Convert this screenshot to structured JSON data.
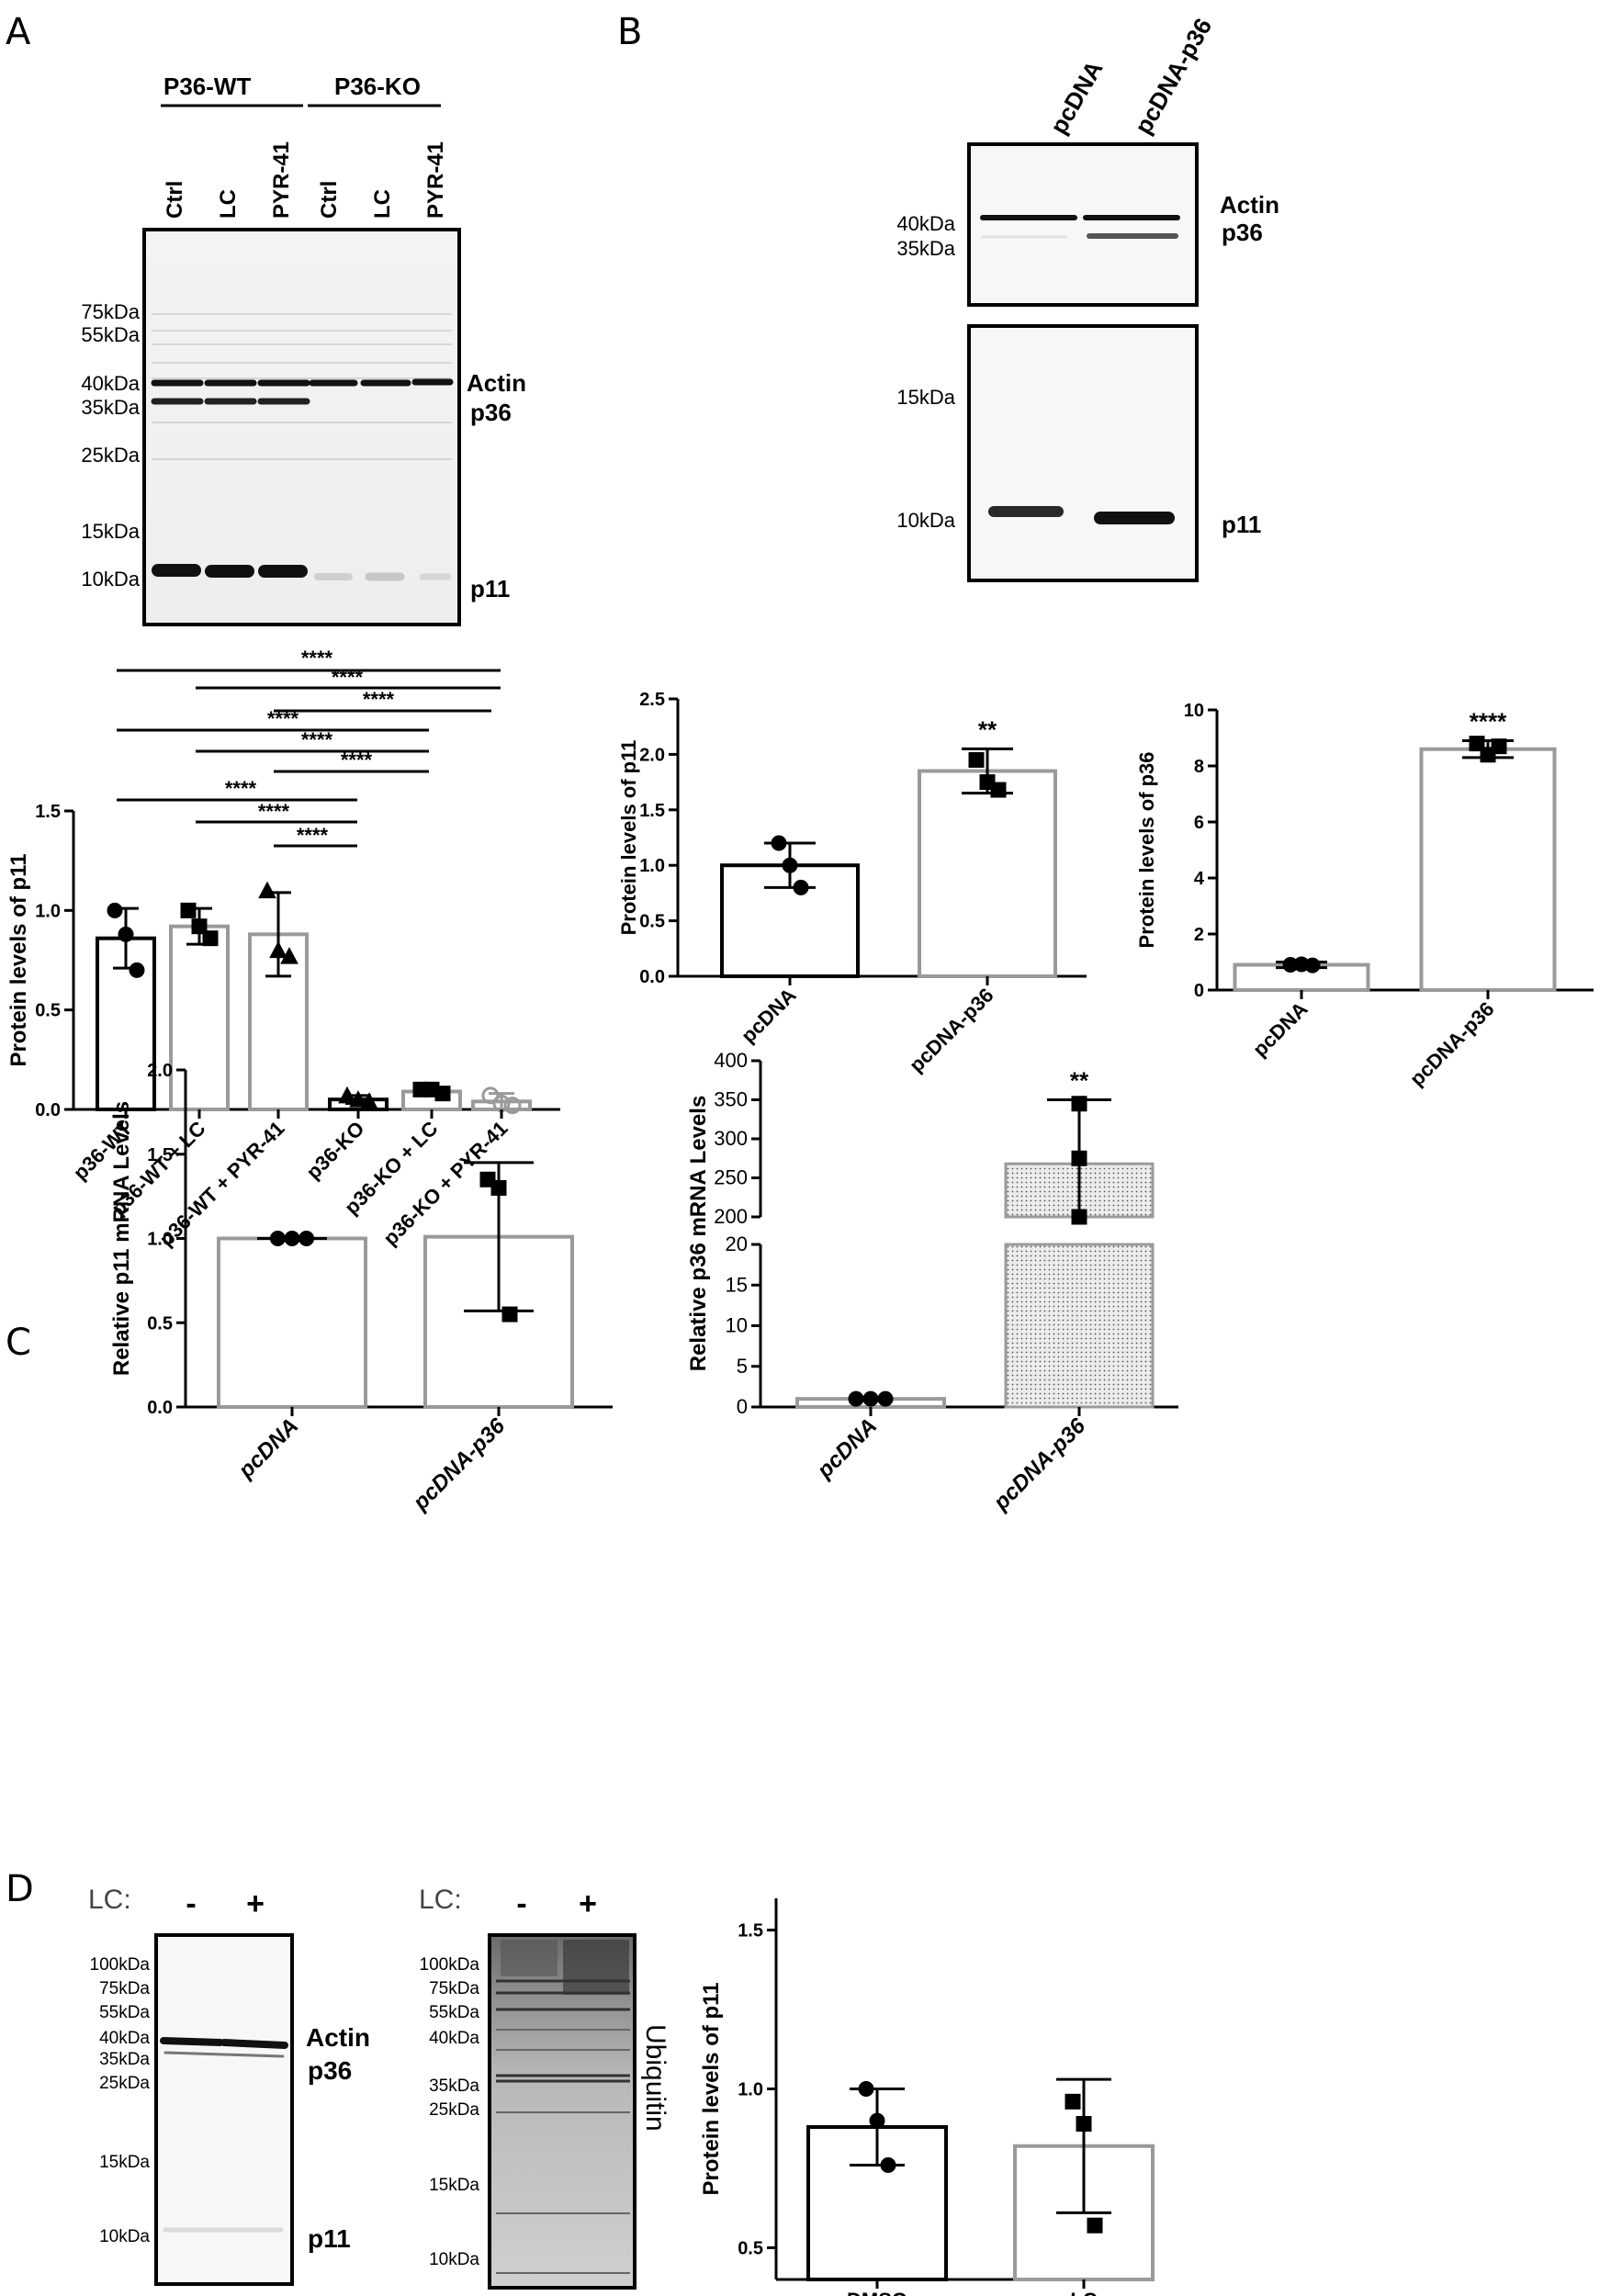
{
  "panels": {
    "A": "A",
    "B": "B",
    "C": "C",
    "D": "D"
  },
  "colors": {
    "black": "#000000",
    "gray": "#9a9a9a",
    "stipple": "#cfcfcf"
  },
  "A": {
    "groups": [
      "P36-WT",
      "P36-KO"
    ],
    "lanes": [
      "Ctrl",
      "LC",
      "PYR-41",
      "Ctrl",
      "LC",
      "PYR-41"
    ],
    "markers": [
      "75kDa",
      "55kDa",
      "40kDa",
      "35kDa",
      "25kDa",
      "15kDa",
      "10kDa"
    ],
    "bands": [
      "Actin",
      "p36",
      "p11"
    ],
    "sig": [
      "****",
      "****",
      "****",
      "****",
      "****",
      "****",
      "****",
      "****",
      "****"
    ]
  },
  "B": {
    "lanes": [
      "pcDNA",
      "pcDNA-p36"
    ],
    "markers_top": [
      "40kDa",
      "35kDa"
    ],
    "markers_bottom": [
      "15kDa",
      "10kDa"
    ],
    "bands": [
      "Actin",
      "p36",
      "p11"
    ]
  },
  "C": {
    "axis_break_note": "//"
  },
  "D": {
    "lc_label": "LC:",
    "lc_signs": [
      "-",
      "+"
    ],
    "markers_left": [
      "100kDa",
      "75kDa",
      "55kDa",
      "40kDa",
      "35kDa",
      "25kDa",
      "15kDa",
      "10kDa"
    ],
    "markers_right": [
      "100kDa",
      "75kDa",
      "55kDa",
      "40kDa",
      "35kDa",
      "25kDa",
      "15kDa",
      "10kDa"
    ],
    "bands": [
      "Actin",
      "p36",
      "p11"
    ],
    "ubiquitin": "Ubiquitin"
  },
  "chart_data": [
    {
      "id": "A-chart",
      "type": "bar",
      "categories": [
        "p36-WT",
        "p36-WT + LC",
        "p36-WT + PYR-41",
        "p36-KO",
        "p36-KO + LC",
        "p36-KO + PYR-41"
      ],
      "values": [
        0.86,
        0.92,
        0.88,
        0.05,
        0.09,
        0.04
      ],
      "errors": [
        0.15,
        0.09,
        0.21,
        0.02,
        0.02,
        0.04
      ],
      "points": [
        [
          1.0,
          0.88,
          0.7
        ],
        [
          1.0,
          0.92,
          0.86
        ],
        [
          1.1,
          0.8,
          0.77
        ],
        [
          0.07,
          0.05,
          0.04
        ],
        [
          0.1,
          0.1,
          0.08
        ],
        [
          0.07,
          0.03,
          0.02
        ]
      ],
      "ylabel": "Protein levels of p11",
      "xlabel": "",
      "ylim": [
        0,
        1.5
      ],
      "yticks": [
        0.0,
        0.5,
        1.0,
        1.5
      ],
      "ytick_labels": [
        "0.0",
        "0.5",
        "1.0",
        "1.5"
      ]
    },
    {
      "id": "B-chart1",
      "type": "bar",
      "categories": [
        "pcDNA",
        "pcDNA-p36"
      ],
      "values": [
        1.0,
        1.85
      ],
      "errors": [
        0.2,
        0.2
      ],
      "points": [
        [
          1.2,
          1.0,
          0.8
        ],
        [
          1.95,
          1.75,
          1.68
        ]
      ],
      "annotation": [
        "",
        "**"
      ],
      "ylabel": "Protein levels of p11",
      "ylim": [
        0,
        2.5
      ],
      "yticks": [
        0.0,
        0.5,
        1.0,
        1.5,
        2.0,
        2.5
      ],
      "ytick_labels": [
        "0.0",
        "0.5",
        "1.0",
        "1.5",
        "2.0",
        "2.5"
      ]
    },
    {
      "id": "B-chart2",
      "type": "bar",
      "categories": [
        "pcDNA",
        "pcDNA-p36"
      ],
      "values": [
        0.9,
        8.6
      ],
      "errors": [
        0.1,
        0.3
      ],
      "points": [
        [
          0.9,
          0.92,
          0.88
        ],
        [
          8.8,
          8.4,
          8.7
        ]
      ],
      "annotation": [
        "",
        "****"
      ],
      "ylabel": "Protein levels of p36",
      "ylim": [
        0,
        10
      ],
      "yticks": [
        0,
        2,
        4,
        6,
        8,
        10
      ],
      "ytick_labels": [
        "0",
        "2",
        "4",
        "6",
        "8",
        "10"
      ]
    },
    {
      "id": "C-chart1",
      "type": "bar",
      "categories": [
        "pcDNA",
        "pcDNA-p36"
      ],
      "values": [
        1.0,
        1.01
      ],
      "errors": [
        0.0,
        0.44
      ],
      "points": [
        [
          1.0,
          1.0,
          1.0
        ],
        [
          1.35,
          1.3,
          0.55
        ]
      ],
      "ylabel": "Relative p11 mRNA Levels",
      "ylim": [
        0,
        2.0
      ],
      "yticks": [
        0.0,
        0.5,
        1.0,
        1.5,
        2.0
      ],
      "ytick_labels": [
        "0.0",
        "0.5",
        "1.0",
        "1.5",
        "2.0"
      ]
    },
    {
      "id": "C-chart2",
      "type": "bar",
      "categories": [
        "pcDNA",
        "pcDNA-p36"
      ],
      "values": [
        1.0,
        268
      ],
      "errors": [
        0.1,
        82
      ],
      "points": [
        [
          1.0,
          1.0,
          1.0
        ],
        [
          345,
          275,
          200
        ]
      ],
      "annotation": [
        "",
        "**"
      ],
      "ylabel": "Relative p36 mRNA Levels",
      "ylim_lower": [
        0,
        20
      ],
      "ylim_upper": [
        200,
        400
      ],
      "yticks_lower": [
        0,
        5,
        10,
        15,
        20
      ],
      "ytick_labels_lower": [
        "0",
        "5",
        "10",
        "15",
        "20"
      ],
      "yticks_upper": [
        200,
        250,
        300,
        350,
        400
      ],
      "ytick_labels_upper": [
        "200",
        "250",
        "300",
        "350",
        "400"
      ]
    },
    {
      "id": "D-chart",
      "type": "bar",
      "categories": [
        "DMSO",
        "LC"
      ],
      "values": [
        0.88,
        0.82
      ],
      "errors": [
        0.12,
        0.21
      ],
      "points": [
        [
          1.0,
          0.9,
          0.76
        ],
        [
          0.96,
          0.89,
          0.57
        ]
      ],
      "ylabel": "Protein levels of p11",
      "ylim": [
        0.4,
        1.6
      ],
      "yticks": [
        0.5,
        1.0,
        1.5
      ],
      "ytick_labels": [
        "0.5",
        "1.0",
        "1.5"
      ]
    }
  ]
}
